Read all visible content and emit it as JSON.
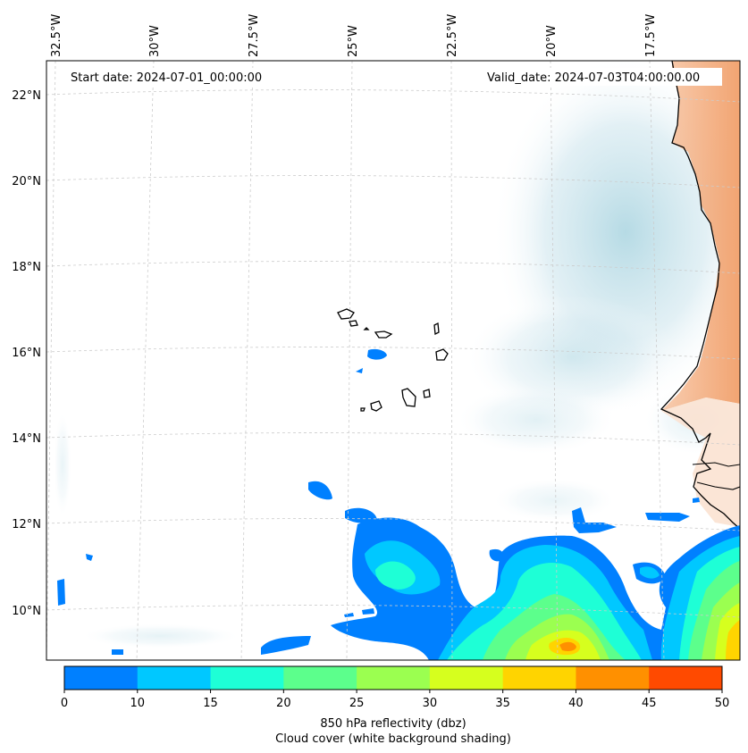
{
  "map": {
    "start_date": "Start date: 2024-07-01_00:00:00",
    "valid_date": "Valid_date: 2024-07-03T04:00:00.00",
    "lon_labels": [
      "32.5°W",
      "30°W",
      "27.5°W",
      "25°W",
      "22.5°W",
      "20°W",
      "17.5°W"
    ],
    "lat_labels": [
      "22°N",
      "20°N",
      "18°N",
      "16°N",
      "14°N",
      "12°N",
      "10°N"
    ]
  },
  "colorbar": {
    "ticks": [
      "0",
      "10",
      "15",
      "20",
      "25",
      "30",
      "35",
      "40",
      "45",
      "50"
    ],
    "colors": [
      "#0080ff",
      "#00c8ff",
      "#1effd6",
      "#5cff8c",
      "#9bff50",
      "#d6ff1e",
      "#ffd400",
      "#ff9000",
      "#ff4a00"
    ],
    "label": "850 hPa reflectivity (dbz)",
    "sublabel": "Cloud cover (white background shading)"
  },
  "colors": {
    "land": "#f4a26a",
    "cloud": "#a9d4e0",
    "coast": "#000000",
    "grid": "#cccccc"
  }
}
